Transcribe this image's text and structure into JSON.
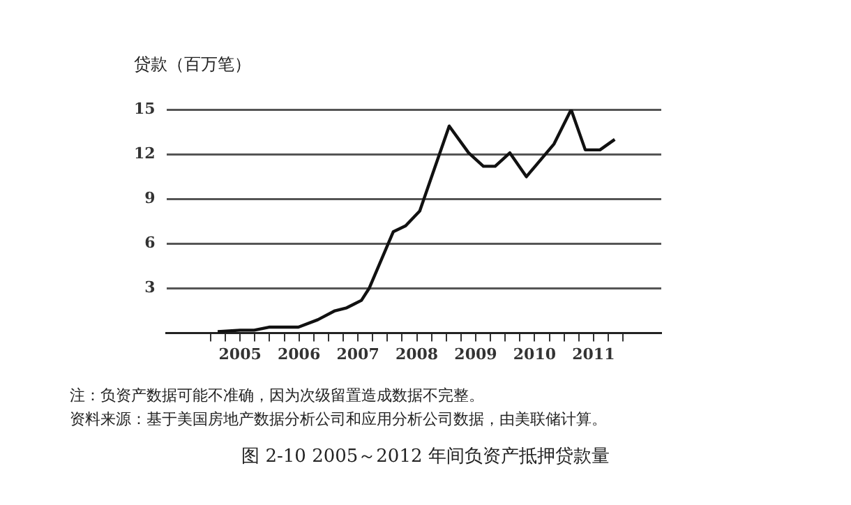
{
  "chart_data": {
    "type": "line",
    "title": "图 2-10 2005～2012 年间负资产抵押贷款量",
    "ylabel": "贷款（百万笔）",
    "annotations": [
      "注：负资产数据可能不准确，因为次级留置造成数据不完整。",
      "资料来源：基于美国房地产数据分析公司和应用分析公司数据，由美联储计算。"
    ],
    "x": [
      2005.12,
      2005.5,
      2005.74,
      2005.99,
      2006.49,
      2006.82,
      2007.11,
      2007.31,
      2007.56,
      2007.69,
      2008.1,
      2008.31,
      2008.55,
      2009.05,
      2009.38,
      2009.63,
      2009.83,
      2010.08,
      2010.36,
      2010.83,
      2011.12,
      2011.36,
      2011.61,
      2011.86
    ],
    "series": [
      {
        "color": "#111111",
        "values": [
          0.1,
          0.2,
          0.2,
          0.4,
          0.4,
          0.9,
          1.5,
          1.7,
          2.2,
          3.0,
          6.8,
          7.2,
          8.2,
          13.9,
          12.1,
          11.2,
          11.2,
          12.1,
          10.5,
          12.7,
          15.0,
          12.3,
          12.3,
          13.0
        ]
      }
    ],
    "xlim": [
      2004.25,
      2012.65
    ],
    "xticks": [
      {
        "value": 2005,
        "label": null
      },
      {
        "value": 2005.25,
        "label": null
      },
      {
        "value": 2005.5,
        "label": "2005"
      },
      {
        "value": 2005.75,
        "label": null
      },
      {
        "value": 2006,
        "label": null
      },
      {
        "value": 2006.25,
        "label": null
      },
      {
        "value": 2006.5,
        "label": "2006"
      },
      {
        "value": 2006.75,
        "label": null
      },
      {
        "value": 2007,
        "label": null
      },
      {
        "value": 2007.25,
        "label": null
      },
      {
        "value": 2007.5,
        "label": "2007"
      },
      {
        "value": 2007.75,
        "label": null
      },
      {
        "value": 2008,
        "label": null
      },
      {
        "value": 2008.25,
        "label": null
      },
      {
        "value": 2008.5,
        "label": "2008"
      },
      {
        "value": 2008.75,
        "label": null
      },
      {
        "value": 2009,
        "label": null
      },
      {
        "value": 2009.25,
        "label": null
      },
      {
        "value": 2009.5,
        "label": "2009"
      },
      {
        "value": 2009.75,
        "label": null
      },
      {
        "value": 2010,
        "label": null
      },
      {
        "value": 2010.25,
        "label": null
      },
      {
        "value": 2010.5,
        "label": "2010"
      },
      {
        "value": 2010.75,
        "label": null
      },
      {
        "value": 2011,
        "label": null
      },
      {
        "value": 2011.25,
        "label": null
      },
      {
        "value": 2011.5,
        "label": "2011"
      },
      {
        "value": 2011.75,
        "label": null
      },
      {
        "value": 2012,
        "label": null
      }
    ],
    "ylim": [
      0,
      15
    ],
    "yticks": [
      {
        "value": 0,
        "label": null
      },
      3,
      6,
      9,
      12,
      15
    ],
    "grid": "y",
    "legend": false,
    "marker": "none",
    "line_style": "solid"
  }
}
